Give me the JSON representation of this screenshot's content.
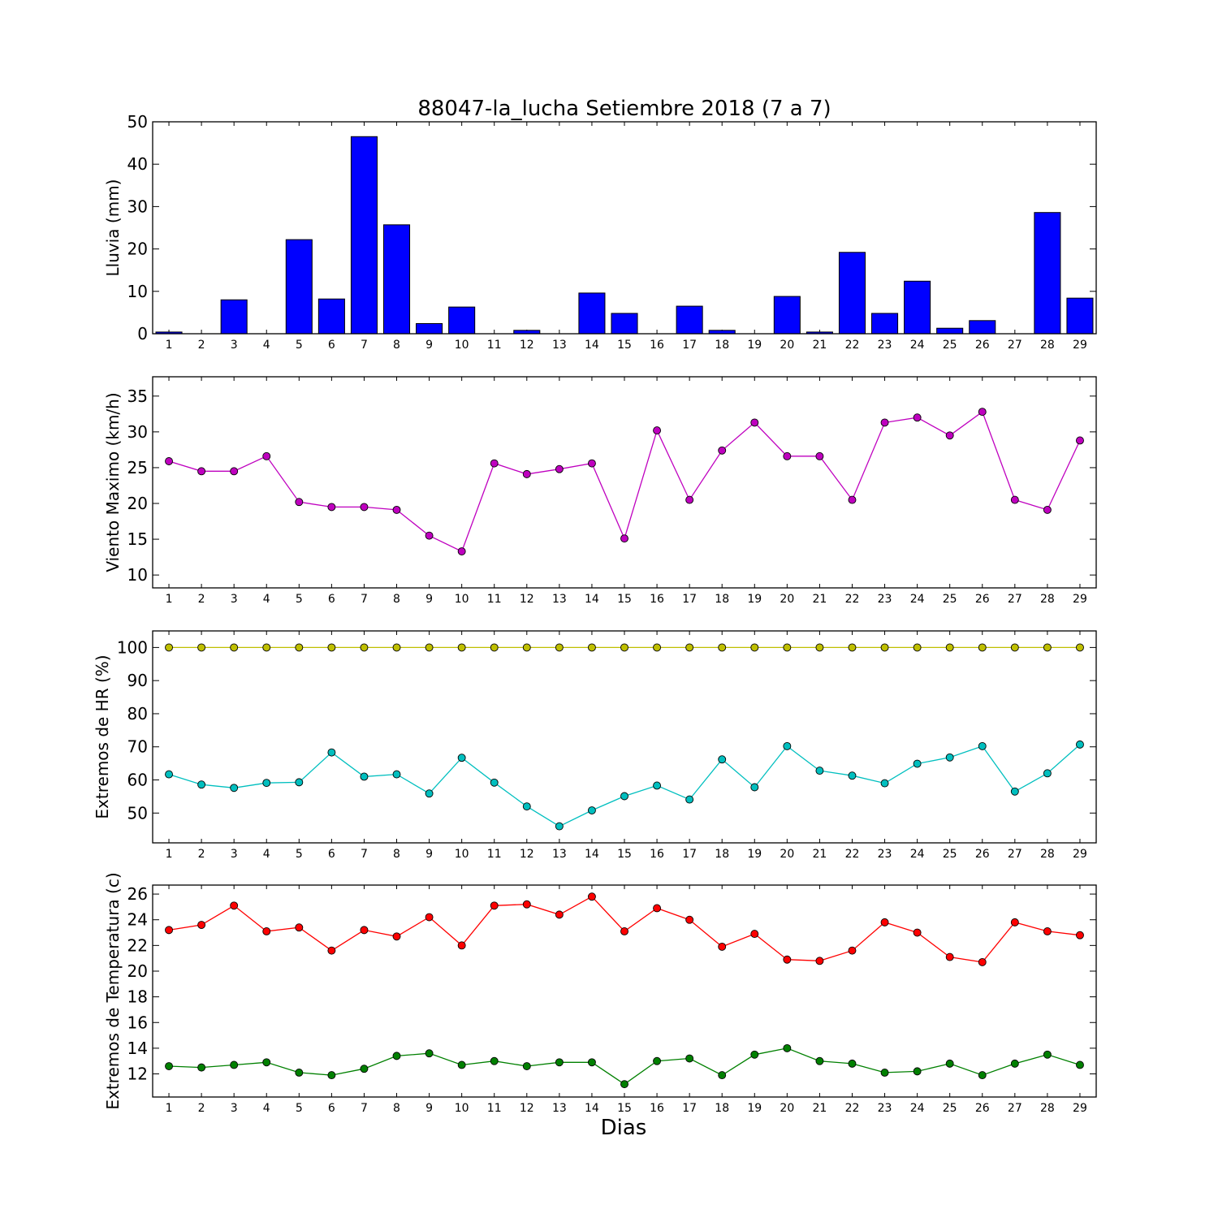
{
  "title": "88047-la_lucha Setiembre 2018  (7 a 7)",
  "xlabel": "Dias",
  "chart_data": [
    {
      "type": "bar",
      "ylabel": "Lluvia (mm)",
      "ylim": [
        0,
        50
      ],
      "yticks": [
        0,
        10,
        20,
        30,
        40,
        50
      ],
      "x": [
        1,
        2,
        3,
        4,
        5,
        6,
        7,
        8,
        9,
        10,
        11,
        12,
        13,
        14,
        15,
        16,
        17,
        18,
        19,
        20,
        21,
        22,
        23,
        24,
        25,
        26,
        27,
        28,
        29
      ],
      "series": [
        {
          "color": "#0000ff",
          "values": [
            0.4,
            0,
            8.0,
            0,
            22.2,
            8.2,
            46.5,
            25.7,
            2.4,
            6.3,
            0,
            0.8,
            0,
            9.6,
            4.8,
            0,
            6.5,
            0.8,
            0,
            8.8,
            0.4,
            19.2,
            4.8,
            12.4,
            1.3,
            3.1,
            0,
            28.6,
            8.4
          ]
        }
      ]
    },
    {
      "type": "line",
      "ylabel": "Viento Maximo (km/h)",
      "ylim": [
        8.2,
        37.7
      ],
      "yticks": [
        10,
        15,
        20,
        25,
        30,
        35
      ],
      "x": [
        1,
        2,
        3,
        4,
        5,
        6,
        7,
        8,
        9,
        10,
        11,
        12,
        13,
        14,
        15,
        16,
        17,
        18,
        19,
        20,
        21,
        22,
        23,
        24,
        25,
        26,
        27,
        28,
        29
      ],
      "series": [
        {
          "color": "#bf00bf",
          "values": [
            25.9,
            24.5,
            24.5,
            26.6,
            20.2,
            19.5,
            19.5,
            19.1,
            15.5,
            13.3,
            25.6,
            24.1,
            24.8,
            25.6,
            15.1,
            30.2,
            20.5,
            27.4,
            31.3,
            26.6,
            26.6,
            20.5,
            31.3,
            32.0,
            29.5,
            32.8,
            20.5,
            19.1,
            28.8
          ]
        }
      ]
    },
    {
      "type": "line",
      "ylabel": "Extremos de HR (%)",
      "ylim": [
        41,
        105
      ],
      "yticks": [
        50,
        60,
        70,
        80,
        90,
        100
      ],
      "x": [
        1,
        2,
        3,
        4,
        5,
        6,
        7,
        8,
        9,
        10,
        11,
        12,
        13,
        14,
        15,
        16,
        17,
        18,
        19,
        20,
        21,
        22,
        23,
        24,
        25,
        26,
        27,
        28,
        29
      ],
      "series": [
        {
          "color": "#bfbf00",
          "values": [
            100,
            100,
            100,
            100,
            100,
            100,
            100,
            100,
            100,
            100,
            100,
            100,
            100,
            100,
            100,
            100,
            100,
            100,
            100,
            100,
            100,
            100,
            100,
            100,
            100,
            100,
            100,
            100,
            100
          ]
        },
        {
          "color": "#00bfbf",
          "values": [
            61.7,
            58.6,
            57.6,
            59.1,
            59.3,
            68.3,
            61.0,
            61.7,
            55.9,
            66.7,
            59.2,
            52.0,
            46.0,
            50.8,
            55.1,
            58.3,
            54.1,
            66.2,
            57.8,
            70.2,
            62.8,
            61.3,
            59.0,
            64.9,
            66.8,
            70.2,
            56.5,
            62.0,
            70.7
          ]
        }
      ]
    },
    {
      "type": "line",
      "ylabel": "Extremos de Temperatura (c)",
      "ylim": [
        10.2,
        26.7
      ],
      "yticks": [
        12,
        14,
        16,
        18,
        20,
        22,
        24,
        26
      ],
      "x": [
        1,
        2,
        3,
        4,
        5,
        6,
        7,
        8,
        9,
        10,
        11,
        12,
        13,
        14,
        15,
        16,
        17,
        18,
        19,
        20,
        21,
        22,
        23,
        24,
        25,
        26,
        27,
        28,
        29
      ],
      "series": [
        {
          "color": "#ff0000",
          "values": [
            23.2,
            23.6,
            25.1,
            23.1,
            23.4,
            21.6,
            23.2,
            22.7,
            24.2,
            22.0,
            25.1,
            25.2,
            24.4,
            25.8,
            23.1,
            24.9,
            24.0,
            21.9,
            22.9,
            20.9,
            20.8,
            21.6,
            23.8,
            23.0,
            21.1,
            20.7,
            23.8,
            23.1,
            22.8
          ]
        },
        {
          "color": "#008000",
          "values": [
            12.6,
            12.5,
            12.7,
            12.9,
            12.1,
            11.9,
            12.4,
            13.4,
            13.6,
            12.7,
            13.0,
            12.6,
            12.9,
            12.9,
            11.2,
            13.0,
            13.2,
            11.9,
            13.5,
            14.0,
            13.0,
            12.8,
            12.1,
            12.2,
            12.8,
            11.9,
            12.8,
            13.5,
            12.7
          ]
        }
      ]
    }
  ]
}
